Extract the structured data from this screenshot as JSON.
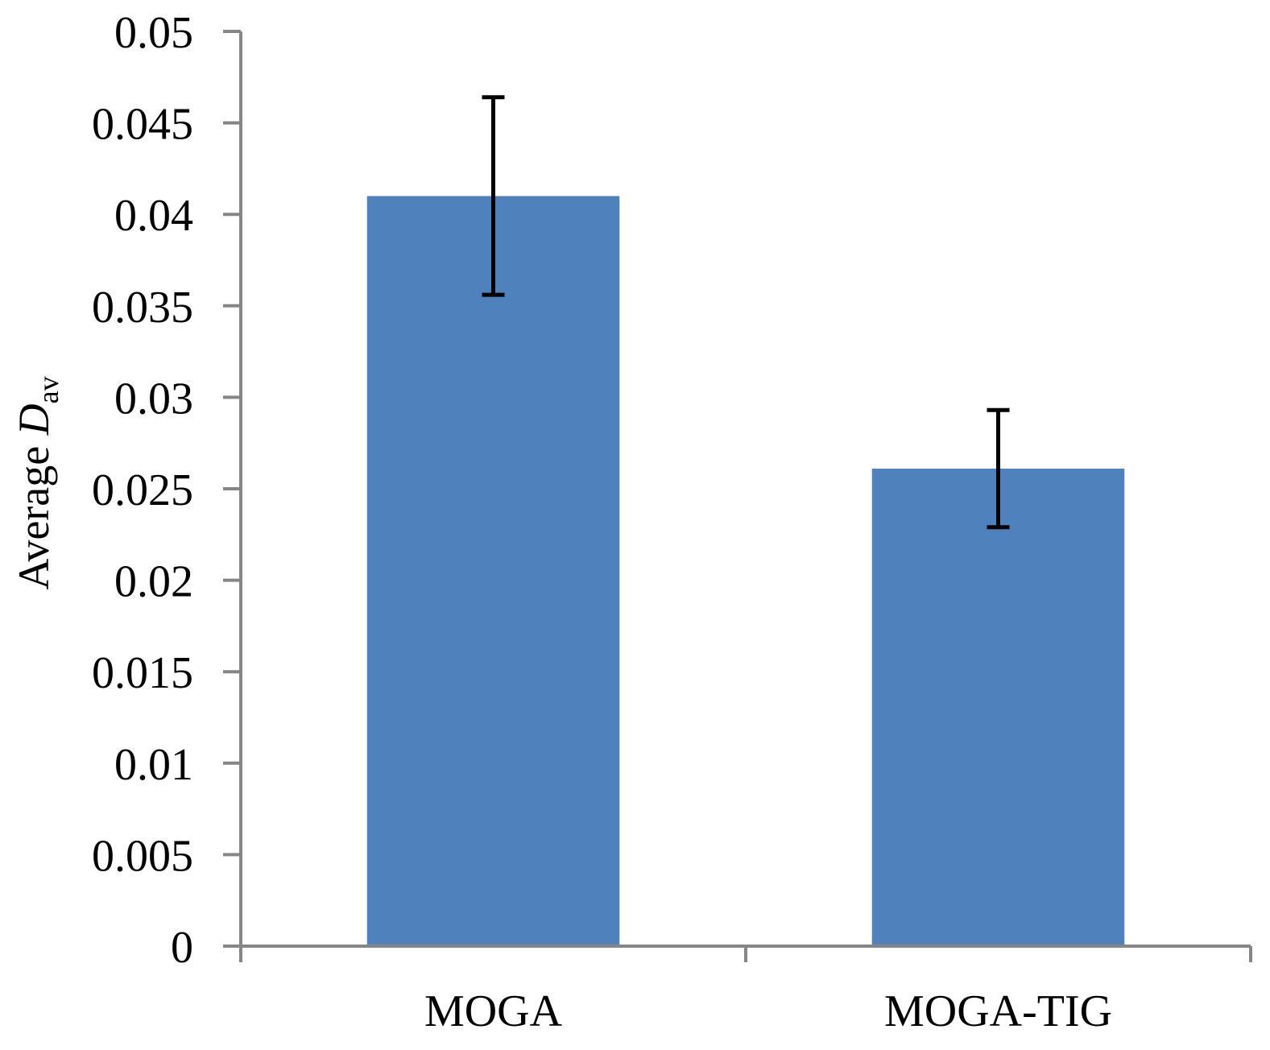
{
  "chart_data": {
    "type": "bar",
    "title": "",
    "xlabel": "",
    "ylabel": {
      "prefix": "Average ",
      "variable": "D",
      "subscript": "av"
    },
    "categories": [
      "MOGA",
      "MOGA-TIG"
    ],
    "values": [
      0.041,
      0.0261
    ],
    "error_upper": [
      0.0464,
      0.0293
    ],
    "error_lower": [
      0.0356,
      0.0229
    ],
    "ylim": [
      0,
      0.05
    ],
    "yticks": [
      0,
      0.005,
      0.01,
      0.015,
      0.02,
      0.025,
      0.03,
      0.035,
      0.04,
      0.045,
      0.05
    ],
    "ytick_labels": [
      "0",
      "0.005",
      "0.01",
      "0.015",
      "0.02",
      "0.025",
      "0.03",
      "0.035",
      "0.04",
      "0.045",
      "0.05"
    ],
    "grid": false,
    "legend": "none",
    "colors": {
      "bar": "#4f81bd",
      "axis": "#868686",
      "error_bar": "#000000"
    }
  }
}
